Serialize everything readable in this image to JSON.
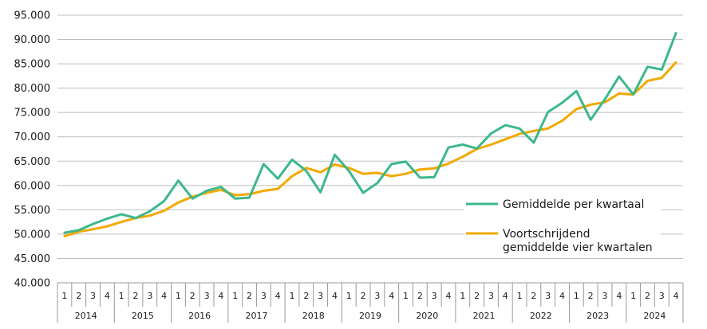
{
  "chart_data": {
    "type": "line",
    "title": "",
    "xlabel": "",
    "ylabel": "",
    "ylim": [
      40000,
      95000
    ],
    "yticks": [
      "40.000",
      "45.000",
      "50.000",
      "55.000",
      "60.000",
      "65.000",
      "70.000",
      "75.000",
      "80.000",
      "85.000",
      "90.000",
      "95.000"
    ],
    "grid": "horizontal",
    "legend_position": "right",
    "quarters": [
      "1",
      "2",
      "3",
      "4"
    ],
    "years": [
      "2014",
      "2015",
      "2016",
      "2017",
      "2018",
      "2019",
      "2020",
      "2021",
      "2022",
      "2023",
      "2024"
    ],
    "series": [
      {
        "name": "Gemiddelde per kwartaal",
        "color": "#3db88b",
        "values": [
          50300,
          50800,
          52100,
          53200,
          54100,
          53300,
          54700,
          56800,
          61000,
          57300,
          58900,
          59700,
          57300,
          57500,
          64400,
          61400,
          65300,
          63000,
          58600,
          66300,
          63000,
          58500,
          60500,
          64400,
          64900,
          61600,
          61700,
          67800,
          68400,
          67600,
          70700,
          72400,
          71700,
          68800,
          75100,
          77000,
          79400,
          73500,
          77700,
          82400,
          78700,
          84400,
          83800,
          91300
        ]
      },
      {
        "name": "Voortschrijdend gemiddelde vier kwartalen",
        "color": "#f2a900",
        "values": [
          49600,
          50500,
          51000,
          51600,
          52500,
          53300,
          53800,
          54800,
          56500,
          57700,
          58500,
          59100,
          58000,
          58200,
          58900,
          59300,
          61900,
          63600,
          62700,
          64300,
          63600,
          62400,
          62600,
          61900,
          62400,
          63300,
          63500,
          64500,
          65900,
          67500,
          68400,
          69500,
          70600,
          71200,
          71700,
          73300,
          75700,
          76600,
          77100,
          78900,
          78700,
          81500,
          82100,
          85300
        ]
      }
    ]
  }
}
